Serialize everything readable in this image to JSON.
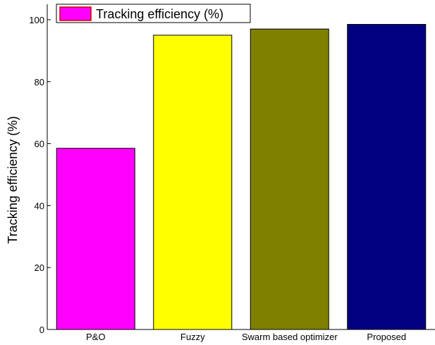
{
  "chart_data": {
    "type": "bar",
    "categories": [
      "P&O",
      "Fuzzy",
      "Swarm based optimizer",
      "Proposed"
    ],
    "series": [
      {
        "name": "Tracking efficiency (%)",
        "values": [
          58.5,
          95,
          97,
          98.5
        ],
        "colors": [
          "#ff00ff",
          "#ffff00",
          "#808000",
          "#000080"
        ]
      }
    ],
    "xlabel": "",
    "ylabel": "Tracking efficiency (%)",
    "ylim": [
      0,
      105
    ],
    "yticks": [
      0,
      20,
      40,
      60,
      80,
      100
    ],
    "grid": false,
    "legend": {
      "position": "top-left",
      "border_color": "#cc0000"
    }
  }
}
